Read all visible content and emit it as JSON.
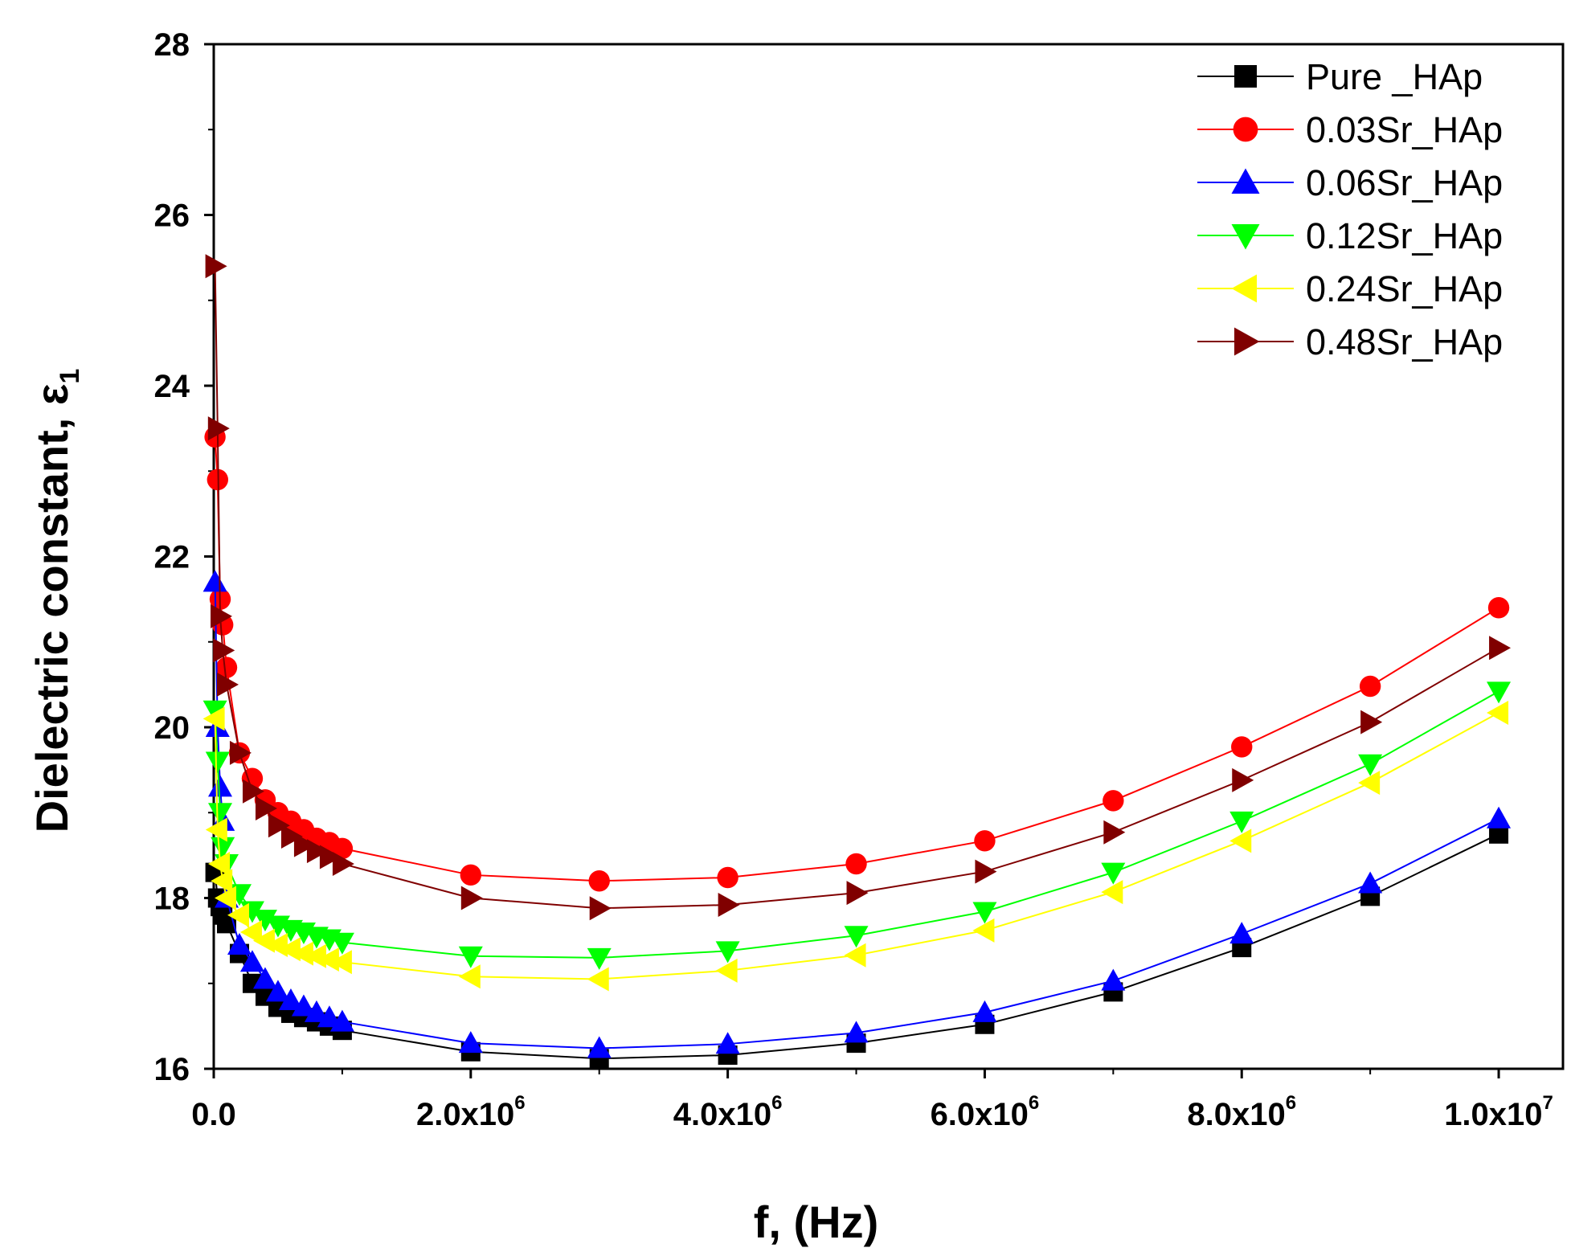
{
  "chart_data": {
    "type": "line",
    "title": "",
    "xlabel": "f, (Hz)",
    "ylabel_main": "Dielectric constant, ε",
    "ylabel_sub": "1",
    "xlim": [
      0,
      10500000
    ],
    "ylim": [
      16,
      28
    ],
    "x_ticks": [
      {
        "value": 0,
        "mantissa": "0.0",
        "exp": ""
      },
      {
        "value": 2000000,
        "mantissa": "2.0x10",
        "exp": "6"
      },
      {
        "value": 4000000,
        "mantissa": "4.0x10",
        "exp": "6"
      },
      {
        "value": 6000000,
        "mantissa": "6.0x10",
        "exp": "6"
      },
      {
        "value": 8000000,
        "mantissa": "8.0x10",
        "exp": "6"
      },
      {
        "value": 10000000,
        "mantissa": "1.0x10",
        "exp": "7"
      }
    ],
    "y_ticks": [
      16,
      18,
      20,
      22,
      24,
      26,
      28
    ],
    "legend_position": "top-right",
    "x": [
      10000,
      30000,
      50000,
      70000,
      100000,
      200000,
      300000,
      400000,
      500000,
      600000,
      700000,
      800000,
      900000,
      1000000,
      2000000,
      3000000,
      4000000,
      5000000,
      6000000,
      7000000,
      8000000,
      9000000,
      10000000
    ],
    "series": [
      {
        "name": "Pure _HAp",
        "color": "#000000",
        "marker": "square",
        "values": [
          18.3,
          18.0,
          17.9,
          17.8,
          17.7,
          17.35,
          17.0,
          16.85,
          16.72,
          16.65,
          16.6,
          16.55,
          16.5,
          16.45,
          16.2,
          16.12,
          16.16,
          16.3,
          16.52,
          16.9,
          17.42,
          18.02,
          18.75
        ]
      },
      {
        "name": "0.03Sr_HAp",
        "color": "#ff0000",
        "marker": "circle",
        "values": [
          23.4,
          22.9,
          21.5,
          21.2,
          20.7,
          19.7,
          19.4,
          19.15,
          19.0,
          18.9,
          18.8,
          18.7,
          18.65,
          18.58,
          18.27,
          18.2,
          18.24,
          18.4,
          18.67,
          19.14,
          19.77,
          20.48,
          21.4
        ]
      },
      {
        "name": "0.06Sr_HAp",
        "color": "#0000ff",
        "marker": "triangle-up",
        "values": [
          21.7,
          20.0,
          19.3,
          18.9,
          18.0,
          17.45,
          17.25,
          17.05,
          16.9,
          16.8,
          16.73,
          16.66,
          16.6,
          16.55,
          16.3,
          16.24,
          16.29,
          16.42,
          16.66,
          17.03,
          17.58,
          18.17,
          18.93
        ]
      },
      {
        "name": "0.12Sr_HAp",
        "color": "#00ff00",
        "marker": "triangle-down",
        "values": [
          20.2,
          19.6,
          19.0,
          18.6,
          18.4,
          18.05,
          17.85,
          17.75,
          17.68,
          17.63,
          17.6,
          17.55,
          17.52,
          17.48,
          17.32,
          17.3,
          17.38,
          17.56,
          17.84,
          18.3,
          18.9,
          19.57,
          20.42
        ]
      },
      {
        "name": "0.24Sr_HAp",
        "color": "#ffff00",
        "marker": "triangle-left",
        "values": [
          20.1,
          18.8,
          18.4,
          18.2,
          18.0,
          17.8,
          17.6,
          17.5,
          17.45,
          17.4,
          17.35,
          17.32,
          17.28,
          17.25,
          17.08,
          17.05,
          17.15,
          17.33,
          17.62,
          18.07,
          18.67,
          19.35,
          20.17
        ]
      },
      {
        "name": "0.48Sr_HAp",
        "color": "#800000",
        "marker": "triangle-right",
        "values": [
          25.4,
          23.5,
          21.3,
          20.9,
          20.5,
          19.7,
          19.25,
          19.05,
          18.85,
          18.72,
          18.62,
          18.55,
          18.48,
          18.4,
          18.0,
          17.88,
          17.92,
          18.06,
          18.31,
          18.77,
          19.38,
          20.06,
          20.93
        ]
      }
    ]
  }
}
